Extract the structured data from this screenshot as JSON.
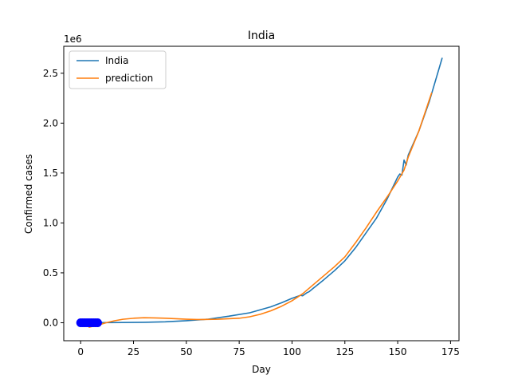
{
  "chart_data": {
    "type": "line",
    "title": "India",
    "xlabel": "Day",
    "ylabel": "Confirmed cases",
    "y_offset_label": "1e6",
    "xlim": [
      -8,
      179
    ],
    "ylim": [
      -0.18,
      2.77
    ],
    "x_ticks": [
      0,
      25,
      50,
      75,
      100,
      125,
      150,
      175
    ],
    "y_ticks": [
      0.0,
      0.5,
      1.0,
      1.5,
      2.0,
      2.5
    ],
    "x_tick_labels": [
      "0",
      "25",
      "50",
      "75",
      "100",
      "125",
      "150",
      "175"
    ],
    "y_tick_labels": [
      "0.0",
      "0.5",
      "1.0",
      "1.5",
      "2.0",
      "2.5"
    ],
    "grid": false,
    "legend_position": "upper-left",
    "series": [
      {
        "name": "India",
        "color": "#1f77b4",
        "x": [
          0,
          10,
          20,
          30,
          40,
          50,
          60,
          70,
          80,
          90,
          95,
          100,
          102,
          104,
          105,
          107,
          108,
          110,
          115,
          120,
          125,
          130,
          135,
          140,
          145,
          150,
          151,
          152,
          153,
          154,
          155,
          160,
          165,
          171
        ],
        "y": [
          0.0,
          0.001,
          0.002,
          0.004,
          0.009,
          0.02,
          0.035,
          0.065,
          0.1,
          0.16,
          0.2,
          0.245,
          0.26,
          0.275,
          0.27,
          0.3,
          0.31,
          0.345,
          0.43,
          0.52,
          0.62,
          0.75,
          0.9,
          1.05,
          1.24,
          1.46,
          1.49,
          1.48,
          1.63,
          1.58,
          1.68,
          1.92,
          2.22,
          2.65
        ]
      },
      {
        "name": "prediction",
        "color": "#ff7f0e",
        "x": [
          4,
          8,
          12,
          16,
          20,
          25,
          30,
          35,
          40,
          45,
          50,
          55,
          60,
          65,
          70,
          75,
          80,
          85,
          90,
          95,
          100,
          105,
          110,
          115,
          120,
          125,
          130,
          135,
          140,
          145,
          150,
          153,
          155,
          160,
          166
        ],
        "y": [
          -0.045,
          -0.025,
          0.0,
          0.02,
          0.035,
          0.045,
          0.05,
          0.048,
          0.045,
          0.04,
          0.035,
          0.032,
          0.033,
          0.035,
          0.04,
          0.045,
          0.06,
          0.085,
          0.12,
          0.165,
          0.22,
          0.29,
          0.38,
          0.47,
          0.56,
          0.66,
          0.8,
          0.95,
          1.11,
          1.26,
          1.42,
          1.53,
          1.66,
          1.92,
          2.3
        ]
      }
    ],
    "scatter": {
      "color": "#0000ff",
      "x": [
        0,
        1,
        2,
        3,
        4,
        5,
        6,
        7,
        8
      ],
      "y": [
        0,
        0,
        0,
        0,
        0,
        0,
        0,
        0,
        0
      ]
    }
  }
}
